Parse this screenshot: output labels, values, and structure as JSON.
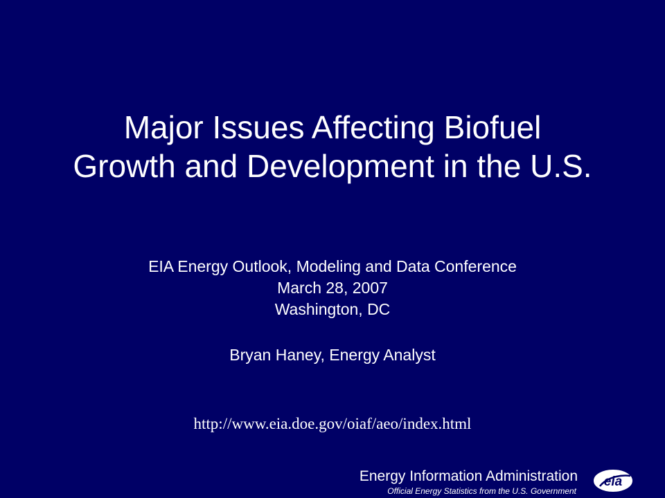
{
  "slide": {
    "title_lines": [
      "Major Issues Affecting Biofuel",
      "Growth and Development in the U.S."
    ],
    "subtitle_lines": [
      "EIA Energy Outlook, Modeling and Data Conference",
      "March 28, 2007",
      "Washington, DC"
    ],
    "presenter": "Bryan Haney, Energy Analyst",
    "url": "http://www.eia.doe.gov/oiaf/aeo/index.html"
  },
  "footer": {
    "organization": "Energy Information Administration",
    "tagline": "Official Energy Statistics from the U.S. Government",
    "logo_text": "eia"
  },
  "colors": {
    "background": "#000066",
    "text": "#ffffff"
  }
}
